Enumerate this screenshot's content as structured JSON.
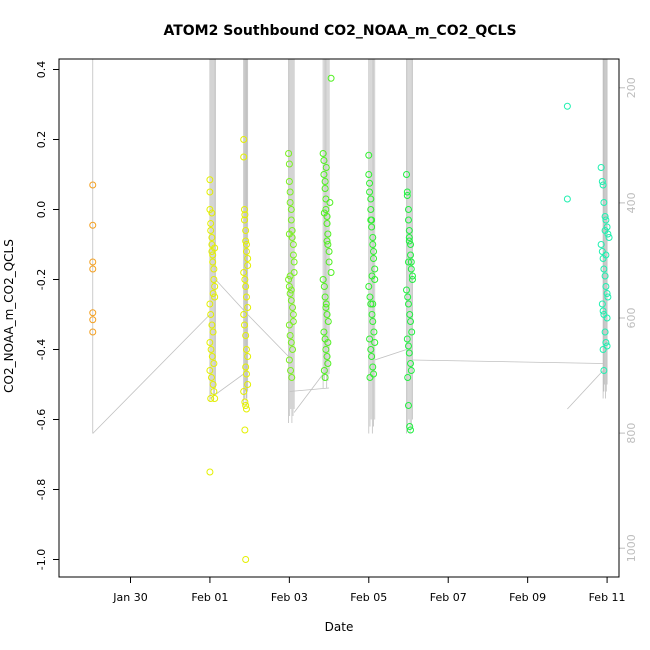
{
  "chart_data": {
    "type": "scatter",
    "title": "ATOM2 Southbound CO2_NOAA_m_CO2_QCLS",
    "xlabel": "Date",
    "ylabel": "CO2_NOAA_m_CO2_QCLS",
    "x_unit": "days",
    "xlim": [
      -1.8,
      12.3
    ],
    "ylim": [
      -1.05,
      0.43
    ],
    "y2lim": [
      1050,
      150
    ],
    "x_ticks": [
      {
        "label": "Jan 30",
        "value": 0
      },
      {
        "label": "Feb 01",
        "value": 2
      },
      {
        "label": "Feb 03",
        "value": 4
      },
      {
        "label": "Feb 05",
        "value": 6
      },
      {
        "label": "Feb 07",
        "value": 8
      },
      {
        "label": "Feb 09",
        "value": 10
      },
      {
        "label": "Feb 11",
        "value": 12
      }
    ],
    "y_ticks": [
      {
        "label": "0.4",
        "value": 0.4
      },
      {
        "label": "0.2",
        "value": 0.2
      },
      {
        "label": "0.0",
        "value": 0.0
      },
      {
        "label": "-0.2",
        "value": -0.2
      },
      {
        "label": "-0.4",
        "value": -0.4
      },
      {
        "label": "-0.6",
        "value": -0.6
      },
      {
        "label": "-0.8",
        "value": -0.8
      },
      {
        "label": "-1.0",
        "value": -1.0
      }
    ],
    "y2_ticks": [
      {
        "label": "200",
        "value": 200
      },
      {
        "label": "400",
        "value": 400
      },
      {
        "label": "600",
        "value": 600
      },
      {
        "label": "800",
        "value": 800
      },
      {
        "label": "1000",
        "value": 1000
      }
    ],
    "grid": false,
    "legend": "none",
    "colors": {
      "orange": "#f4a020",
      "yellow": "#e4f000",
      "yellow_green": "#c8f020",
      "green": "#50f020",
      "green2": "#20f040",
      "teal": "#20f0b0",
      "profile_line": "#c0c0c0"
    },
    "series": [
      {
        "color": "#f4a020",
        "x": [
          -0.95,
          -0.95,
          -0.95,
          -0.95,
          -0.95,
          -0.95,
          -0.95
        ],
        "y": [
          0.07,
          -0.045,
          -0.15,
          -0.17,
          -0.295,
          -0.315,
          -0.35
        ]
      },
      {
        "color": "#e4f000",
        "x": [
          2.0,
          2.0,
          2.0,
          2.02,
          2.02,
          2.05,
          2.05,
          2.05,
          2.07,
          2.07,
          2.1,
          2.1,
          2.12,
          2.12,
          2.0,
          2.02,
          2.05,
          2.08,
          2.0,
          2.03,
          2.06,
          2.1,
          2.0,
          2.04,
          2.08,
          2.1,
          2.12,
          2.02,
          2.05,
          2.08,
          2.0,
          2.12
        ],
        "y": [
          0.085,
          0.05,
          0.0,
          -0.04,
          -0.06,
          -0.08,
          -0.1,
          -0.12,
          -0.13,
          -0.15,
          -0.17,
          -0.2,
          -0.22,
          -0.25,
          -0.27,
          -0.3,
          -0.33,
          -0.35,
          -0.38,
          -0.4,
          -0.42,
          -0.44,
          -0.46,
          -0.48,
          -0.5,
          -0.52,
          -0.54,
          -0.54,
          -0.01,
          -0.24,
          -0.75,
          -0.11
        ]
      },
      {
        "color": "#e4f000",
        "x": [
          2.85,
          2.85,
          2.87,
          2.87,
          2.9,
          2.9,
          2.92,
          2.92,
          2.95,
          2.95,
          2.85,
          2.88,
          2.9,
          2.92,
          2.95,
          2.85,
          2.87,
          2.9,
          2.92,
          2.95,
          2.9,
          2.92,
          2.95,
          2.85,
          2.88,
          2.9,
          2.92,
          2.88,
          2.9,
          2.88
        ],
        "y": [
          0.2,
          0.15,
          0.0,
          -0.03,
          -0.06,
          -0.09,
          -0.1,
          -0.12,
          -0.14,
          -0.16,
          -0.18,
          -0.2,
          -0.22,
          -0.25,
          -0.28,
          -0.3,
          -0.33,
          -0.36,
          -0.4,
          -0.42,
          -0.45,
          -0.47,
          -0.5,
          -0.52,
          -0.55,
          -0.56,
          -0.57,
          -0.63,
          -1.0,
          -0.015
        ]
      },
      {
        "color": "#7af020",
        "x": [
          3.98,
          4.0,
          4.0,
          4.02,
          4.02,
          4.05,
          4.05,
          4.07,
          4.07,
          4.1,
          4.1,
          4.12,
          4.12,
          3.98,
          4.0,
          4.02,
          4.05,
          4.08,
          4.1,
          4.0,
          4.02,
          4.05,
          4.08,
          4.0,
          4.03,
          4.06,
          4.0,
          4.02,
          4.05,
          4.1
        ],
        "y": [
          0.16,
          0.13,
          0.08,
          0.05,
          0.02,
          0.0,
          -0.03,
          -0.06,
          -0.08,
          -0.1,
          -0.13,
          -0.15,
          -0.18,
          -0.2,
          -0.22,
          -0.24,
          -0.26,
          -0.28,
          -0.3,
          -0.33,
          -0.36,
          -0.38,
          -0.4,
          -0.43,
          -0.46,
          -0.48,
          -0.07,
          -0.19,
          -0.23,
          -0.32
        ]
      },
      {
        "color": "#50f020",
        "x": [
          4.85,
          4.87,
          4.87,
          4.9,
          4.9,
          4.92,
          4.92,
          4.95,
          4.95,
          4.97,
          4.97,
          5.0,
          5.0,
          5.05,
          4.85,
          4.88,
          4.9,
          4.93,
          4.95,
          4.98,
          4.87,
          4.9,
          4.92,
          4.95,
          4.97,
          4.88,
          4.9,
          4.93,
          4.95,
          5.02,
          5.05,
          4.92,
          4.97,
          4.88
        ],
        "y": [
          0.16,
          0.14,
          0.1,
          0.08,
          0.06,
          0.03,
          0.0,
          -0.02,
          -0.04,
          -0.07,
          -0.1,
          -0.12,
          -0.15,
          -0.18,
          -0.2,
          -0.22,
          -0.25,
          -0.27,
          -0.3,
          -0.32,
          -0.35,
          -0.37,
          -0.4,
          -0.42,
          -0.44,
          -0.46,
          -0.48,
          0.12,
          -0.09,
          0.02,
          0.375,
          -0.28,
          -0.38,
          -0.01
        ]
      },
      {
        "color": "#30f030",
        "x": [
          6.0,
          6.0,
          6.02,
          6.02,
          6.05,
          6.05,
          6.07,
          6.07,
          6.1,
          6.1,
          6.12,
          6.12,
          6.15,
          6.15,
          6.0,
          6.03,
          6.05,
          6.08,
          6.1,
          6.13,
          6.02,
          6.05,
          6.07,
          6.1,
          6.12,
          6.03,
          6.05,
          6.08,
          6.1,
          6.15
        ],
        "y": [
          0.155,
          0.1,
          0.075,
          0.05,
          0.03,
          0.0,
          -0.03,
          -0.05,
          -0.08,
          -0.1,
          -0.12,
          -0.14,
          -0.17,
          -0.2,
          -0.22,
          -0.25,
          -0.27,
          -0.3,
          -0.32,
          -0.35,
          -0.37,
          -0.4,
          -0.42,
          -0.45,
          -0.47,
          -0.48,
          -0.03,
          -0.19,
          -0.27,
          -0.38
        ]
      },
      {
        "color": "#20f040",
        "x": [
          6.95,
          6.97,
          6.97,
          7.0,
          7.0,
          7.02,
          7.02,
          7.05,
          7.05,
          7.07,
          7.07,
          7.1,
          7.1,
          6.95,
          6.98,
          7.0,
          7.03,
          7.05,
          7.08,
          6.97,
          7.0,
          7.02,
          7.05,
          7.07,
          6.98,
          7.0,
          7.03,
          7.05,
          7.0,
          7.02
        ],
        "y": [
          0.1,
          0.05,
          0.04,
          0.0,
          -0.03,
          -0.06,
          -0.09,
          -0.1,
          -0.13,
          -0.15,
          -0.17,
          -0.19,
          -0.2,
          -0.23,
          -0.25,
          -0.27,
          -0.3,
          -0.32,
          -0.35,
          -0.37,
          -0.39,
          -0.41,
          -0.44,
          -0.46,
          -0.48,
          -0.56,
          -0.62,
          -0.63,
          -0.15,
          -0.08
        ]
      },
      {
        "color": "#20f0b0",
        "x": [
          11.0,
          11.0,
          11.85,
          11.88,
          11.9,
          11.92,
          11.95,
          11.97,
          12.0,
          12.02,
          12.05,
          11.85,
          11.88,
          11.9,
          11.92,
          11.95,
          11.97,
          12.0,
          12.02,
          11.88,
          11.9,
          11.92,
          11.95,
          11.97,
          12.0,
          11.9,
          11.92,
          11.95,
          11.97,
          12.0
        ],
        "y": [
          0.295,
          0.03,
          0.12,
          0.08,
          0.07,
          0.02,
          -0.02,
          -0.03,
          -0.05,
          -0.07,
          -0.08,
          -0.1,
          -0.12,
          -0.14,
          -0.17,
          -0.19,
          -0.22,
          -0.24,
          -0.25,
          -0.27,
          -0.29,
          -0.3,
          -0.35,
          -0.38,
          -0.39,
          -0.4,
          -0.46,
          -0.06,
          -0.13,
          -0.31
        ]
      }
    ]
  }
}
